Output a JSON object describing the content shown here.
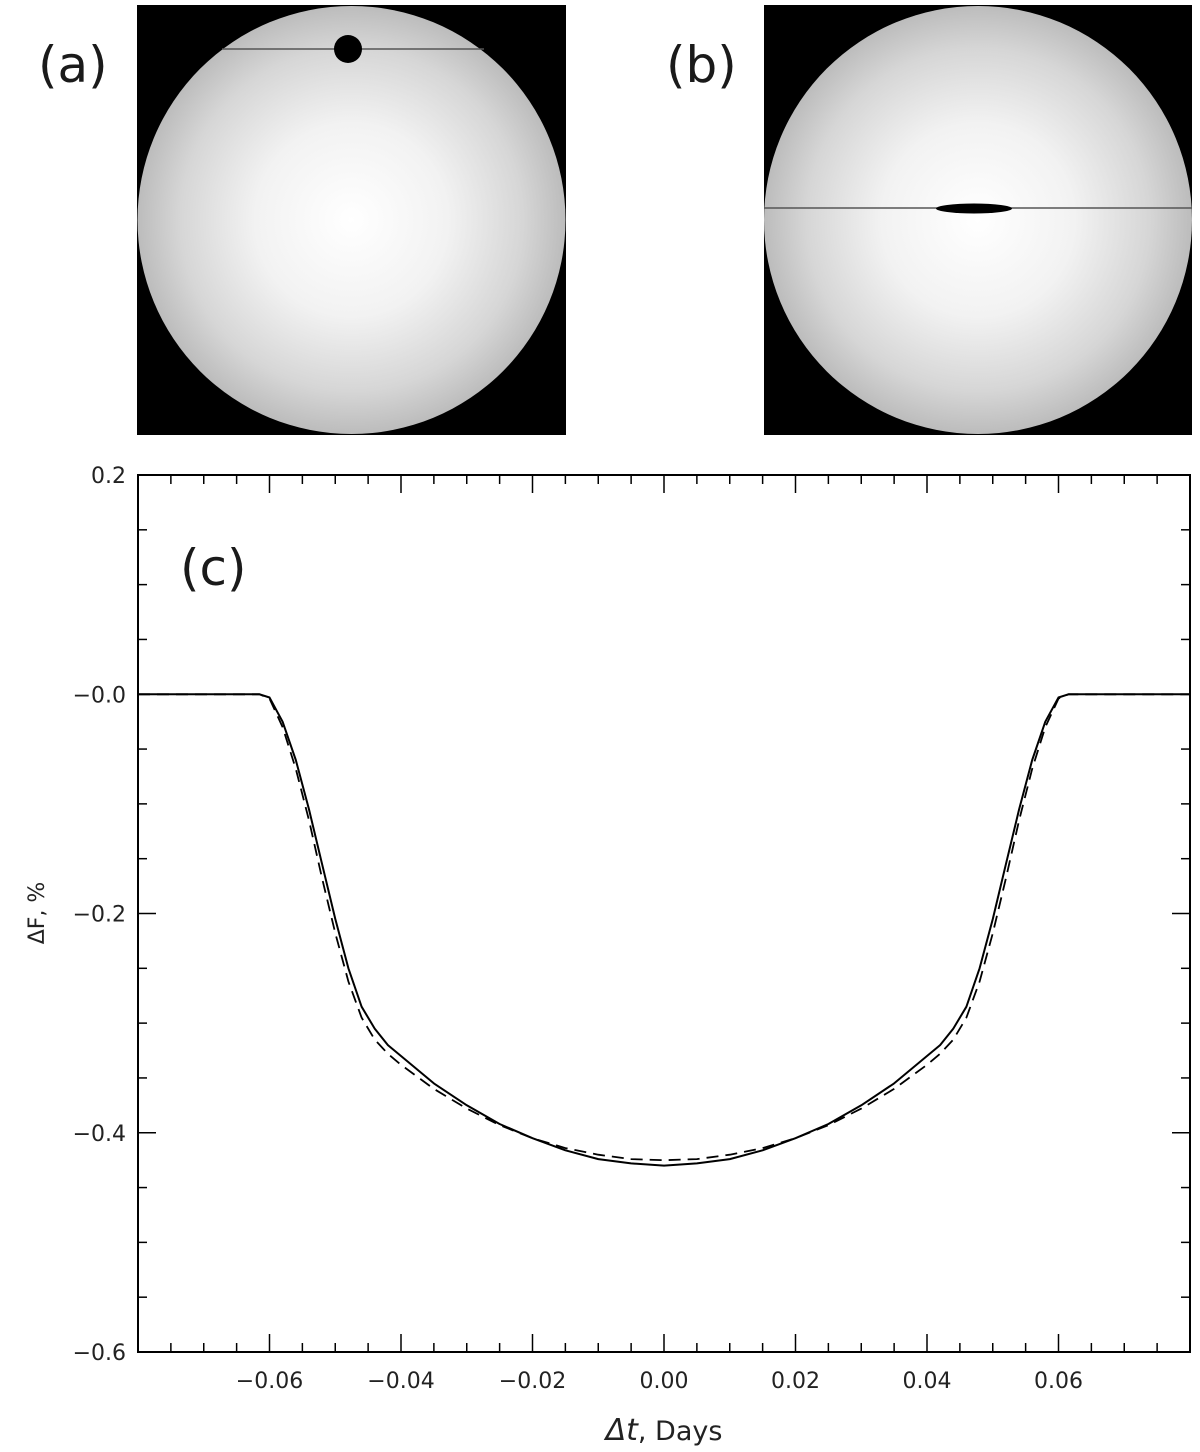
{
  "panels": {
    "a": {
      "label": "(a)"
    },
    "b": {
      "label": "(b)"
    },
    "c": {
      "label": "(c)"
    }
  },
  "chart_data": {
    "type": "line",
    "title": "",
    "xlabel_symbol": "Δt",
    "xlabel_unit": ",  Days",
    "ylabel": "ΔF, %",
    "xlim": [
      -0.08,
      0.08
    ],
    "ylim": [
      -0.6,
      0.2
    ],
    "xticks": [
      -0.06,
      -0.04,
      -0.02,
      0.0,
      0.02,
      0.04,
      0.06
    ],
    "xtick_labels": [
      "−0.06",
      "−0.04",
      "−0.02",
      "0.00",
      "0.02",
      "0.04",
      "0.06"
    ],
    "yticks": [
      0.2,
      0.0,
      -0.2,
      -0.4,
      -0.6
    ],
    "ytick_labels": [
      "0.2",
      "−0.0",
      "−0.2",
      "−0.4",
      "−0.6"
    ],
    "grid": false,
    "series": [
      {
        "style": "solid",
        "x": [
          -0.08,
          -0.07,
          -0.0615,
          -0.06,
          -0.058,
          -0.056,
          -0.054,
          -0.052,
          -0.05,
          -0.048,
          -0.046,
          -0.044,
          -0.042,
          -0.04,
          -0.035,
          -0.03,
          -0.025,
          -0.02,
          -0.015,
          -0.01,
          -0.005,
          0.0,
          0.005,
          0.01,
          0.015,
          0.02,
          0.025,
          0.03,
          0.035,
          0.04,
          0.042,
          0.044,
          0.046,
          0.048,
          0.05,
          0.052,
          0.054,
          0.056,
          0.058,
          0.06,
          0.0615,
          0.07,
          0.08
        ],
        "y": [
          0.0,
          0.0,
          0.0,
          -0.003,
          -0.025,
          -0.06,
          -0.105,
          -0.155,
          -0.205,
          -0.25,
          -0.285,
          -0.305,
          -0.32,
          -0.33,
          -0.355,
          -0.375,
          -0.392,
          -0.405,
          -0.416,
          -0.424,
          -0.428,
          -0.43,
          -0.428,
          -0.424,
          -0.416,
          -0.405,
          -0.392,
          -0.375,
          -0.355,
          -0.33,
          -0.32,
          -0.305,
          -0.285,
          -0.25,
          -0.205,
          -0.155,
          -0.105,
          -0.06,
          -0.025,
          -0.003,
          0.0,
          0.0,
          0.0
        ]
      },
      {
        "style": "dashed",
        "x": [
          -0.08,
          -0.07,
          -0.0615,
          -0.06,
          -0.058,
          -0.056,
          -0.054,
          -0.052,
          -0.05,
          -0.048,
          -0.046,
          -0.044,
          -0.042,
          -0.04,
          -0.035,
          -0.03,
          -0.025,
          -0.02,
          -0.015,
          -0.01,
          -0.005,
          0.0,
          0.005,
          0.01,
          0.015,
          0.02,
          0.025,
          0.03,
          0.035,
          0.04,
          0.042,
          0.044,
          0.046,
          0.048,
          0.05,
          0.052,
          0.054,
          0.056,
          0.058,
          0.06,
          0.0615,
          0.07,
          0.08
        ],
        "y": [
          0.0,
          0.0,
          0.0,
          -0.004,
          -0.03,
          -0.068,
          -0.115,
          -0.168,
          -0.218,
          -0.262,
          -0.295,
          -0.315,
          -0.328,
          -0.338,
          -0.36,
          -0.378,
          -0.393,
          -0.405,
          -0.414,
          -0.42,
          -0.424,
          -0.425,
          -0.424,
          -0.42,
          -0.414,
          -0.405,
          -0.393,
          -0.378,
          -0.36,
          -0.338,
          -0.328,
          -0.315,
          -0.295,
          -0.262,
          -0.218,
          -0.168,
          -0.115,
          -0.068,
          -0.03,
          -0.004,
          0.0,
          0.0,
          0.0
        ]
      }
    ]
  }
}
